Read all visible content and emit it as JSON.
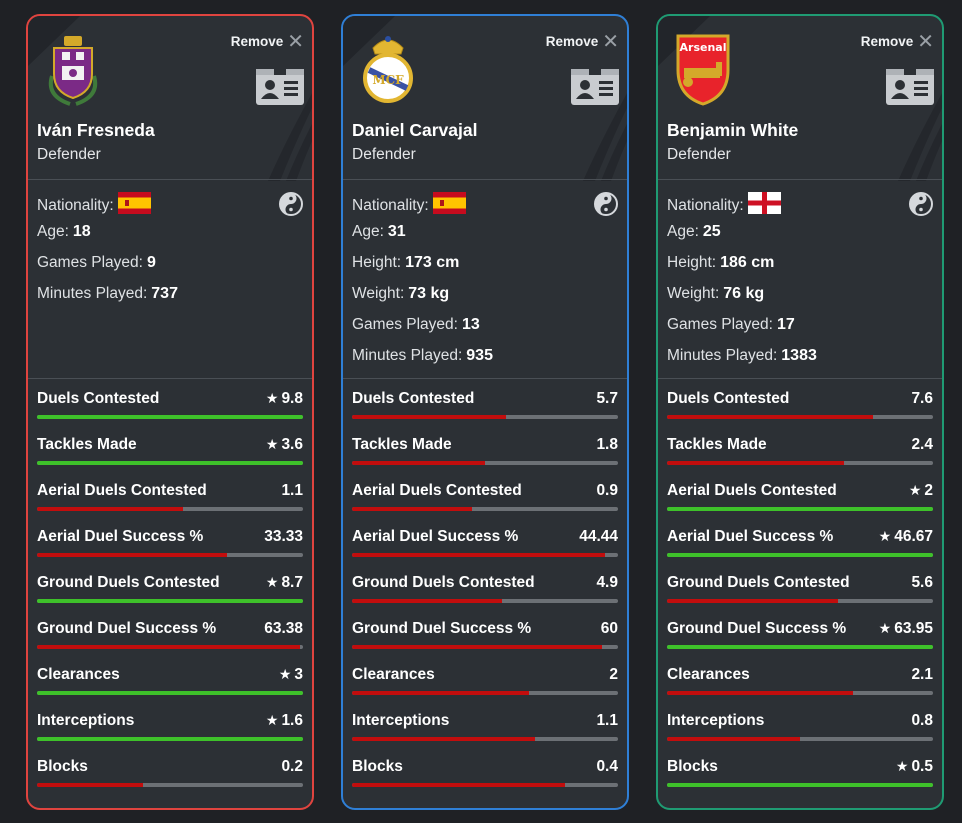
{
  "colors": {
    "good": "#3ec12a",
    "bad": "#c20d0d",
    "card_borders": [
      "#e0443f",
      "#2f7fd6",
      "#1f9b73"
    ]
  },
  "ui": {
    "remove_label": "Remove"
  },
  "cards": [
    {
      "name": "Iván Fresneda",
      "position": "Defender",
      "club_icon": "real-valladolid-crest-icon",
      "nationality_label": "Nationality:",
      "flag": "spain-flag-icon",
      "info": [
        {
          "label": "Age:",
          "value": "18"
        },
        {
          "label": "Games Played:",
          "value": "9"
        },
        {
          "label": "Minutes Played:",
          "value": "737"
        }
      ],
      "stats": [
        {
          "label": "Duels Contested",
          "value": "9.8",
          "star": true,
          "fill": 1.0
        },
        {
          "label": "Tackles Made",
          "value": "3.6",
          "star": true,
          "fill": 1.0
        },
        {
          "label": "Aerial Duels Contested",
          "value": "1.1",
          "star": false,
          "fill": 0.55
        },
        {
          "label": "Aerial Duel Success %",
          "value": "33.33",
          "star": false,
          "fill": 0.714
        },
        {
          "label": "Ground Duels Contested",
          "value": "8.7",
          "star": true,
          "fill": 1.0
        },
        {
          "label": "Ground Duel Success %",
          "value": "63.38",
          "star": false,
          "fill": 0.99
        },
        {
          "label": "Clearances",
          "value": "3",
          "star": true,
          "fill": 1.0
        },
        {
          "label": "Interceptions",
          "value": "1.6",
          "star": true,
          "fill": 1.0
        },
        {
          "label": "Blocks",
          "value": "0.2",
          "star": false,
          "fill": 0.4
        }
      ]
    },
    {
      "name": "Daniel Carvajal",
      "position": "Defender",
      "club_icon": "real-madrid-crest-icon",
      "nationality_label": "Nationality:",
      "flag": "spain-flag-icon",
      "info": [
        {
          "label": "Age:",
          "value": "31"
        },
        {
          "label": "Height:",
          "value": "173 cm"
        },
        {
          "label": "Weight:",
          "value": "73 kg"
        },
        {
          "label": "Games Played:",
          "value": "13"
        },
        {
          "label": "Minutes Played:",
          "value": "935"
        }
      ],
      "stats": [
        {
          "label": "Duels Contested",
          "value": "5.7",
          "star": false,
          "fill": 0.58
        },
        {
          "label": "Tackles Made",
          "value": "1.8",
          "star": false,
          "fill": 0.5
        },
        {
          "label": "Aerial Duels Contested",
          "value": "0.9",
          "star": false,
          "fill": 0.45
        },
        {
          "label": "Aerial Duel Success %",
          "value": "44.44",
          "star": false,
          "fill": 0.952
        },
        {
          "label": "Ground Duels Contested",
          "value": "4.9",
          "star": false,
          "fill": 0.563
        },
        {
          "label": "Ground Duel Success %",
          "value": "60",
          "star": false,
          "fill": 0.938
        },
        {
          "label": "Clearances",
          "value": "2",
          "star": false,
          "fill": 0.667
        },
        {
          "label": "Interceptions",
          "value": "1.1",
          "star": false,
          "fill": 0.688
        },
        {
          "label": "Blocks",
          "value": "0.4",
          "star": false,
          "fill": 0.8
        }
      ]
    },
    {
      "name": "Benjamin White",
      "position": "Defender",
      "club_icon": "arsenal-crest-icon",
      "club_text": "Arsenal",
      "nationality_label": "Nationality:",
      "flag": "england-flag-icon",
      "info": [
        {
          "label": "Age:",
          "value": "25"
        },
        {
          "label": "Height:",
          "value": "186 cm"
        },
        {
          "label": "Weight:",
          "value": "76 kg"
        },
        {
          "label": "Games Played:",
          "value": "17"
        },
        {
          "label": "Minutes Played:",
          "value": "1383"
        }
      ],
      "stats": [
        {
          "label": "Duels Contested",
          "value": "7.6",
          "star": false,
          "fill": 0.776
        },
        {
          "label": "Tackles Made",
          "value": "2.4",
          "star": false,
          "fill": 0.667
        },
        {
          "label": "Aerial Duels Contested",
          "value": "2",
          "star": true,
          "fill": 1.0
        },
        {
          "label": "Aerial Duel Success %",
          "value": "46.67",
          "star": true,
          "fill": 1.0
        },
        {
          "label": "Ground Duels Contested",
          "value": "5.6",
          "star": false,
          "fill": 0.644
        },
        {
          "label": "Ground Duel Success %",
          "value": "63.95",
          "star": true,
          "fill": 1.0
        },
        {
          "label": "Clearances",
          "value": "2.1",
          "star": false,
          "fill": 0.7
        },
        {
          "label": "Interceptions",
          "value": "0.8",
          "star": false,
          "fill": 0.5
        },
        {
          "label": "Blocks",
          "value": "0.5",
          "star": true,
          "fill": 1.0
        }
      ]
    }
  ]
}
